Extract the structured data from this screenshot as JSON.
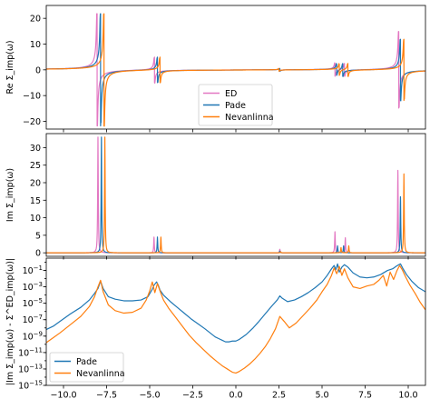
{
  "colors": {
    "ED": "#e377c2",
    "Pade": "#1f77b4",
    "Nevanlinna": "#ff7f0e"
  },
  "chart_data": [
    {
      "type": "line",
      "ylabel": "Re Σ_imp(ω)",
      "xlim": [
        -11,
        11
      ],
      "ylim": [
        -23,
        25
      ],
      "xticks": [
        -10.0,
        -7.5,
        -5.0,
        -2.5,
        0.0,
        2.5,
        5.0,
        7.5,
        10.0
      ],
      "xtick_labels_shown": false,
      "yticks": [
        -20,
        -10,
        0,
        10,
        20
      ],
      "ytick_labels": [
        "−20",
        "−10",
        "0",
        "10",
        "20"
      ],
      "legend": {
        "placement": "lower-center",
        "entries": [
          "ED",
          "Pade",
          "Nevanlinna"
        ]
      },
      "poles": {
        "ED": [
          [
            -8.05,
            22
          ],
          [
            -4.72,
            5
          ],
          [
            2.55,
            0.5
          ],
          [
            5.75,
            2.5
          ],
          [
            6.3,
            2.5
          ],
          [
            9.45,
            15
          ]
        ],
        "Pade": [
          [
            -7.85,
            22
          ],
          [
            -4.55,
            5
          ],
          [
            2.55,
            0.5
          ],
          [
            5.85,
            2.2
          ],
          [
            6.2,
            2.5
          ],
          [
            9.55,
            12
          ]
        ],
        "Nevanlinna": [
          [
            -7.65,
            22
          ],
          [
            -4.4,
            5
          ],
          [
            2.5,
            0.5
          ],
          [
            6.0,
            2.2
          ],
          [
            6.5,
            2.5
          ],
          [
            9.75,
            12
          ]
        ]
      },
      "series": [
        {
          "name": "ED",
          "key": "ED"
        },
        {
          "name": "Pade",
          "key": "Pade"
        },
        {
          "name": "Nevanlinna",
          "key": "Nevanlinna"
        }
      ]
    },
    {
      "type": "line",
      "ylabel": "Im Σ_imp(ω)",
      "xlim": [
        -11,
        11
      ],
      "ylim": [
        -1,
        34
      ],
      "xticks": [
        -10.0,
        -7.5,
        -5.0,
        -2.5,
        0.0,
        2.5,
        5.0,
        7.5,
        10.0
      ],
      "xtick_labels_shown": false,
      "yticks": [
        0,
        5,
        10,
        15,
        20,
        25,
        30
      ],
      "ytick_labels": [
        "0",
        "5",
        "10",
        "15",
        "20",
        "25",
        "30"
      ],
      "peaks": {
        "ED": [
          [
            -8.0,
            33
          ],
          [
            -4.75,
            4.5
          ],
          [
            2.55,
            1.0
          ],
          [
            5.75,
            6.0
          ],
          [
            6.35,
            4.3
          ],
          [
            9.4,
            23.5
          ]
        ],
        "Pade": [
          [
            -7.8,
            33
          ],
          [
            -4.55,
            4.5
          ],
          [
            2.55,
            0.5
          ],
          [
            5.9,
            2.0
          ],
          [
            6.25,
            2.0
          ],
          [
            9.55,
            16
          ]
        ],
        "Nevanlinna": [
          [
            -7.6,
            33
          ],
          [
            -4.35,
            4.5
          ],
          [
            2.6,
            0.3
          ],
          [
            6.1,
            1.5
          ],
          [
            6.55,
            2.0
          ],
          [
            9.75,
            22.5
          ]
        ]
      },
      "series": [
        {
          "name": "ED",
          "key": "ED"
        },
        {
          "name": "Pade",
          "key": "Pade"
        },
        {
          "name": "Nevanlinna",
          "key": "Nevanlinna"
        }
      ]
    },
    {
      "type": "line",
      "ylabel": "|Im Σ_imp(ω) - Σ^ED_imp(ω)|",
      "yscale": "log",
      "xlim": [
        -11,
        11
      ],
      "ylim_exponent": [
        -15,
        0.5
      ],
      "xticks": [
        -10.0,
        -7.5,
        -5.0,
        -2.5,
        0.0,
        2.5,
        5.0,
        7.5,
        10.0
      ],
      "xtick_labels": [
        "−10.0",
        "−7.5",
        "−5.0",
        "−2.5",
        "0.0",
        "2.5",
        "5.0",
        "7.5",
        "10.0"
      ],
      "yticks_exponent": [
        -15,
        -13,
        -11,
        -9,
        -7,
        -5,
        -3,
        -1
      ],
      "ytick_labels": [
        "10",
        "10",
        "10",
        "10",
        "10",
        "10",
        "10",
        "10"
      ],
      "ytick_exponent_labels": [
        "−15",
        "−13",
        "−11",
        "−9",
        "−7",
        "−5",
        "−3",
        "−1"
      ],
      "legend": {
        "placement": "lower-left",
        "entries": [
          "Pade",
          "Nevanlinna"
        ]
      },
      "series": [
        {
          "name": "Pade",
          "key": "Pade",
          "x": [
            -11,
            -10.6,
            -10.2,
            -9.6,
            -9.0,
            -8.5,
            -8.2,
            -8.0,
            -7.85,
            -7.7,
            -7.4,
            -7.0,
            -6.5,
            -6.0,
            -5.5,
            -5.1,
            -4.85,
            -4.75,
            -4.6,
            -4.5,
            -4.4,
            -4.2,
            -3.8,
            -3.4,
            -3.0,
            -2.6,
            -2.2,
            -1.8,
            -1.5,
            -1.2,
            -1.0,
            -0.8,
            -0.6,
            -0.4,
            -0.2,
            0.0,
            0.2,
            0.4,
            0.6,
            0.8,
            1.0,
            1.3,
            1.7,
            2.1,
            2.4,
            2.55,
            2.7,
            3.0,
            3.4,
            3.8,
            4.2,
            4.6,
            5.0,
            5.3,
            5.55,
            5.7,
            5.8,
            5.9,
            6.0,
            6.15,
            6.3,
            6.5,
            6.8,
            7.2,
            7.6,
            8.0,
            8.4,
            8.8,
            9.1,
            9.3,
            9.45,
            9.55,
            9.7,
            9.9,
            10.2,
            10.6,
            11
          ],
          "yexp": [
            -8.2,
            -7.8,
            -7.2,
            -6.3,
            -5.5,
            -4.6,
            -3.8,
            -3.2,
            -2.3,
            -3.2,
            -4.2,
            -4.5,
            -4.7,
            -4.7,
            -4.6,
            -4.2,
            -3.3,
            -2.8,
            -2.4,
            -2.8,
            -3.4,
            -4.0,
            -4.8,
            -5.5,
            -6.2,
            -6.9,
            -7.5,
            -8.1,
            -8.6,
            -9.1,
            -9.3,
            -9.5,
            -9.7,
            -9.7,
            -9.6,
            -9.6,
            -9.4,
            -9.1,
            -8.8,
            -8.4,
            -8.0,
            -7.3,
            -6.3,
            -5.3,
            -4.6,
            -4.1,
            -4.4,
            -4.8,
            -4.6,
            -4.2,
            -3.7,
            -3.1,
            -2.4,
            -1.6,
            -0.8,
            -0.4,
            -0.9,
            -0.2,
            -1.2,
            -0.6,
            -0.3,
            -0.6,
            -1.3,
            -1.8,
            -1.9,
            -1.8,
            -1.5,
            -1.0,
            -0.8,
            -0.5,
            -0.3,
            -0.2,
            -0.8,
            -1.5,
            -2.3,
            -3.1,
            -3.6
          ]
        },
        {
          "name": "Nevanlinna",
          "key": "Nevanlinna",
          "x": [
            -11,
            -10.6,
            -10.2,
            -9.6,
            -9.0,
            -8.5,
            -8.2,
            -8.0,
            -7.85,
            -7.7,
            -7.4,
            -7.0,
            -6.5,
            -6.0,
            -5.5,
            -5.2,
            -5.0,
            -4.85,
            -4.7,
            -4.55,
            -4.4,
            -4.2,
            -3.9,
            -3.5,
            -3.1,
            -2.7,
            -2.3,
            -1.9,
            -1.5,
            -1.1,
            -0.8,
            -0.5,
            -0.2,
            0.0,
            0.2,
            0.5,
            0.8,
            1.1,
            1.4,
            1.7,
            2.0,
            2.3,
            2.55,
            2.8,
            3.1,
            3.5,
            3.9,
            4.3,
            4.7,
            5.0,
            5.3,
            5.55,
            5.7,
            5.85,
            6.0,
            6.15,
            6.3,
            6.5,
            6.8,
            7.2,
            7.6,
            8.0,
            8.3,
            8.55,
            8.75,
            8.95,
            9.15,
            9.35,
            9.5,
            9.65,
            9.85,
            10.1,
            10.4,
            10.7,
            11
          ],
          "yexp": [
            -9.8,
            -9.2,
            -8.6,
            -7.6,
            -6.6,
            -5.4,
            -4.2,
            -3.0,
            -2.2,
            -3.6,
            -5.2,
            -5.9,
            -6.2,
            -6.1,
            -5.6,
            -4.6,
            -3.5,
            -2.4,
            -3.7,
            -2.6,
            -3.5,
            -4.6,
            -5.6,
            -6.7,
            -7.8,
            -8.9,
            -9.8,
            -10.6,
            -11.4,
            -12.1,
            -12.6,
            -13.0,
            -13.4,
            -13.5,
            -13.3,
            -12.9,
            -12.4,
            -11.8,
            -11.1,
            -10.3,
            -9.3,
            -8.1,
            -6.6,
            -7.2,
            -8.0,
            -7.4,
            -6.5,
            -5.6,
            -4.6,
            -3.6,
            -2.7,
            -1.6,
            -0.7,
            -1.4,
            -0.5,
            -1.6,
            -0.8,
            -1.9,
            -3.0,
            -3.2,
            -2.9,
            -2.7,
            -2.2,
            -1.6,
            -2.9,
            -1.2,
            -2.1,
            -1.0,
            -0.4,
            -0.9,
            -1.8,
            -2.8,
            -3.8,
            -4.9,
            -5.8
          ]
        }
      ]
    }
  ]
}
